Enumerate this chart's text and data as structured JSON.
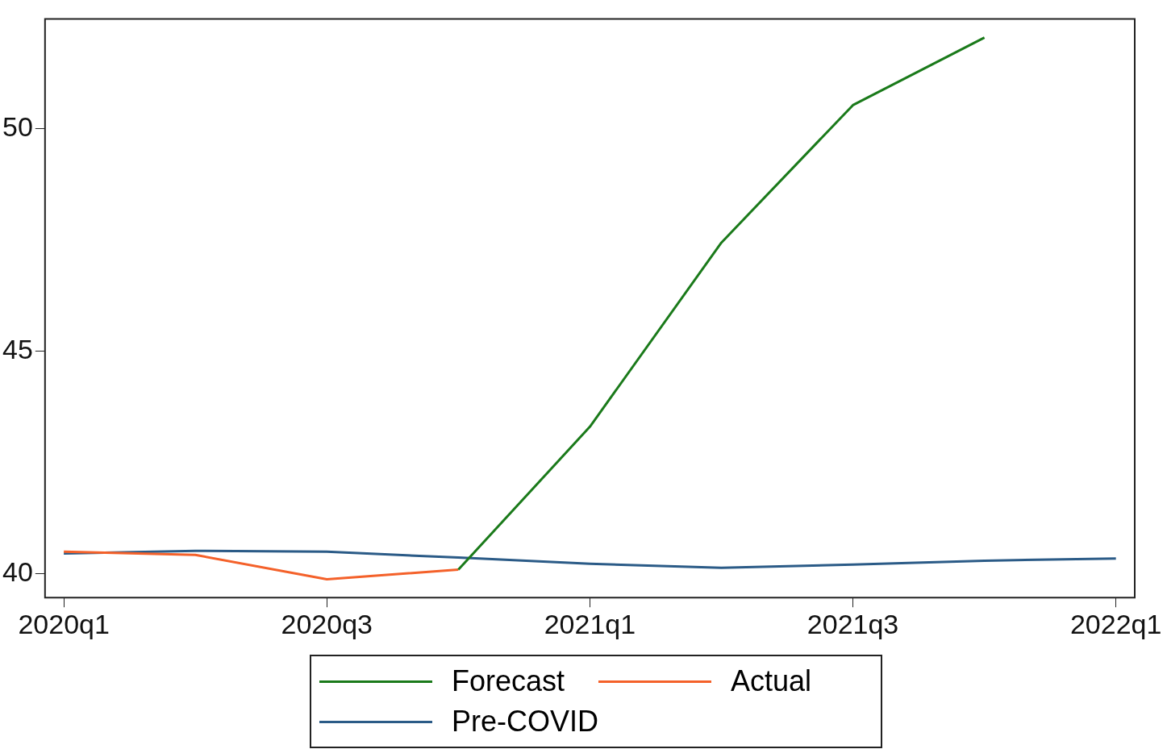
{
  "chart_data": {
    "type": "line",
    "categories": [
      "2020q1",
      null,
      "2020q3",
      null,
      "2021q1",
      null,
      "2021q3",
      null,
      "2022q1"
    ],
    "series": [
      {
        "name": "Forecast",
        "color": "#1a7a1a",
        "values": [
          null,
          null,
          null,
          40.09,
          43.3,
          47.44,
          50.53,
          52.05,
          null
        ]
      },
      {
        "name": "Actual",
        "color": "#f4612a",
        "values": [
          40.49,
          40.42,
          39.87,
          40.09,
          null,
          null,
          null,
          null,
          null
        ]
      },
      {
        "name": "Pre-COVID",
        "color": "#2b5b87",
        "values": [
          40.45,
          40.51,
          40.49,
          40.36,
          40.22,
          40.13,
          40.2,
          40.29,
          40.34
        ]
      }
    ],
    "ylim": [
      39.46,
      52.47
    ],
    "yticks": [
      40,
      45,
      50
    ],
    "grid": false,
    "legend": "bottom",
    "marker": "none",
    "line_style": "solid"
  }
}
